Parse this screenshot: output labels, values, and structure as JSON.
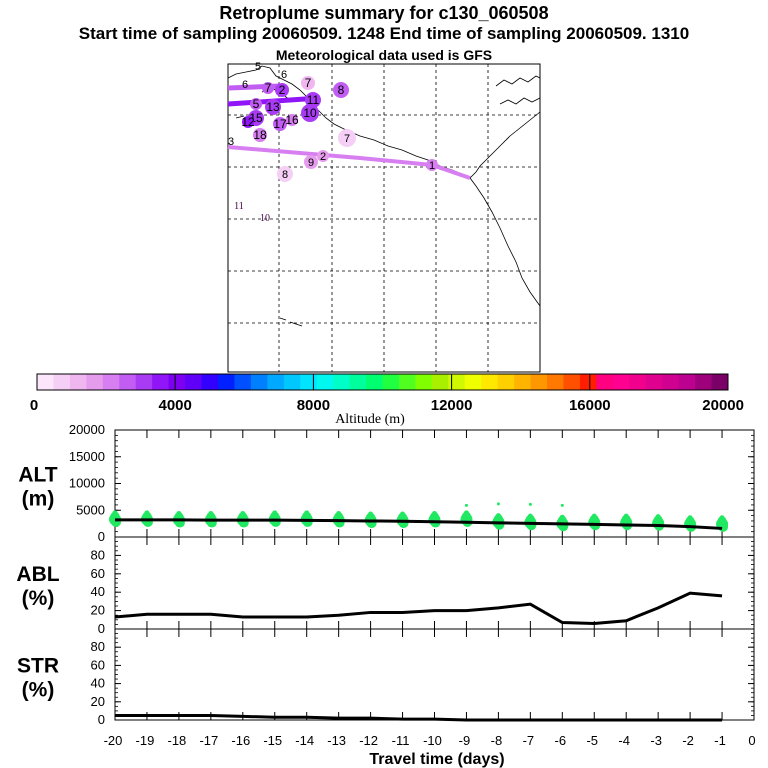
{
  "header": {
    "title": "Retroplume summary for c130_060508",
    "line2": "Start time of sampling 20060509.  1248     End time of sampling 20060509.  1310",
    "line3": "Meteorological data used is GFS"
  },
  "colorbar": {
    "axis_label": "Altitude (m)",
    "ticks": [
      "0",
      "4000",
      "8000",
      "12000",
      "16000",
      "20000"
    ],
    "colors": [
      "#fbe6fb",
      "#f5cff5",
      "#efb6f0",
      "#e59cec",
      "#d77ff0",
      "#c25df4",
      "#a93bf5",
      "#9015f7",
      "#7d00f0",
      "#6000f8",
      "#3200ff",
      "#0020ff",
      "#0050ff",
      "#0080ff",
      "#00a8ff",
      "#00c8ff",
      "#00e4ff",
      "#00f8f0",
      "#00ffc8",
      "#00ff9c",
      "#00ff70",
      "#20ff40",
      "#50ff20",
      "#80ff00",
      "#a8f000",
      "#d0f800",
      "#f0ff00",
      "#ffe800",
      "#ffd000",
      "#ffb400",
      "#ff9800",
      "#ff7800",
      "#ff5000",
      "#ff1e00",
      "#ff0080",
      "#ff0090",
      "#f0008c",
      "#e00090",
      "#d00090",
      "#bc0090",
      "#9e007c",
      "#7a0068"
    ]
  },
  "map_labels": {
    "main_track": [
      "1",
      "9",
      "2",
      "8",
      "7"
    ],
    "north_cluster": [
      "6",
      "7",
      "5",
      "6",
      "2",
      "7",
      "8",
      "11",
      "5",
      "13",
      "15",
      "17",
      "16",
      "10",
      "12",
      "18",
      "3"
    ],
    "stray": [
      "11",
      "10"
    ]
  },
  "chart_data": [
    {
      "type": "line",
      "title": "ALT (m)",
      "label_line1": "ALT",
      "label_line2": "(m)",
      "x": [
        -20,
        -19,
        -18,
        -17,
        -16,
        -15,
        -14,
        -13,
        -12,
        -11,
        -10,
        -9,
        -8,
        -7,
        -6,
        -5,
        -4,
        -3,
        -2,
        -1
      ],
      "series": [
        {
          "name": "mean altitude",
          "values": [
            3200,
            3200,
            3200,
            3150,
            3150,
            3150,
            3100,
            3050,
            3000,
            2950,
            2850,
            2750,
            2650,
            2550,
            2450,
            2350,
            2250,
            2150,
            1950,
            1600
          ]
        }
      ],
      "scatter_centers": [
        3300,
        3300,
        3200,
        3200,
        3200,
        3300,
        3300,
        3200,
        3100,
        3100,
        3200,
        3300,
        2800,
        2700,
        2500,
        2700,
        2700,
        2600,
        2400,
        2400
      ],
      "ylim": [
        0,
        20000
      ],
      "yticks": [
        "0",
        "5000",
        "10000",
        "15000",
        "20000"
      ]
    },
    {
      "type": "line",
      "title": "ABL (%)",
      "label_line1": "ABL",
      "label_line2": "(%)",
      "x": [
        -20,
        -19,
        -18,
        -17,
        -16,
        -15,
        -14,
        -13,
        -12,
        -11,
        -10,
        -9,
        -8,
        -7,
        -6,
        -5,
        -4,
        -3,
        -2,
        -1
      ],
      "series": [
        {
          "name": "ABL fraction",
          "values": [
            13,
            16,
            16,
            16,
            13,
            13,
            13,
            15,
            18,
            18,
            20,
            20,
            23,
            27,
            7,
            6,
            9,
            23,
            39,
            36
          ]
        }
      ],
      "ylim": [
        0,
        100
      ],
      "yticks": [
        "0",
        "20",
        "40",
        "60",
        "80"
      ]
    },
    {
      "type": "line",
      "title": "STR (%)",
      "label_line1": "STR",
      "label_line2": "(%)",
      "x": [
        -20,
        -19,
        -18,
        -17,
        -16,
        -15,
        -14,
        -13,
        -12,
        -11,
        -10,
        -9,
        -8,
        -7,
        -6,
        -5,
        -4,
        -3,
        -2,
        -1
      ],
      "series": [
        {
          "name": "STR fraction",
          "values": [
            5,
            5,
            5,
            5,
            4,
            3,
            3,
            2,
            2,
            1,
            1,
            0,
            0,
            0,
            0,
            0,
            0,
            0,
            0,
            0
          ]
        }
      ],
      "ylim": [
        0,
        100
      ],
      "yticks": [
        "0",
        "20",
        "40",
        "60",
        "80"
      ]
    }
  ],
  "xaxis": {
    "label": "Travel time (days)",
    "ticks": [
      "-20",
      "-19",
      "-18",
      "-17",
      "-16",
      "-15",
      "-14",
      "-13",
      "-12",
      "-11",
      "-10",
      "-9",
      "-8",
      "-7",
      "-6",
      "-5",
      "-4",
      "-3",
      "-2",
      "-1",
      "0"
    ]
  }
}
